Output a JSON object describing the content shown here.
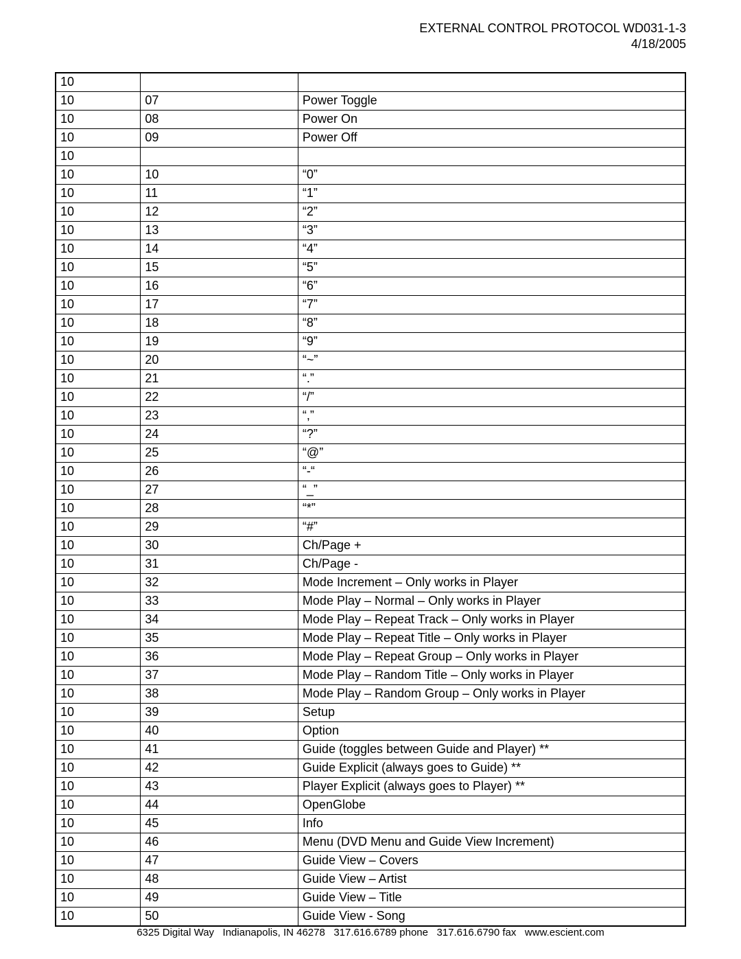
{
  "header": {
    "title": "EXTERNAL CONTROL PROTOCOL WD031-1-3",
    "date": "4/18/2005"
  },
  "table": {
    "rows": [
      {
        "c1": "10",
        "c2": "",
        "c3": ""
      },
      {
        "c1": "10",
        "c2": "07",
        "c3": "Power Toggle"
      },
      {
        "c1": "10",
        "c2": "08",
        "c3": "Power On"
      },
      {
        "c1": "10",
        "c2": "09",
        "c3": "Power Off"
      },
      {
        "c1": "10",
        "c2": "",
        "c3": ""
      },
      {
        "c1": "10",
        "c2": "10",
        "c3": "“0”"
      },
      {
        "c1": "10",
        "c2": "11",
        "c3": "“1”"
      },
      {
        "c1": "10",
        "c2": "12",
        "c3": "“2”"
      },
      {
        "c1": "10",
        "c2": "13",
        "c3": "“3”"
      },
      {
        "c1": "10",
        "c2": "14",
        "c3": "“4”"
      },
      {
        "c1": "10",
        "c2": "15",
        "c3": "“5”"
      },
      {
        "c1": "10",
        "c2": "16",
        "c3": "“6”"
      },
      {
        "c1": "10",
        "c2": "17",
        "c3": "“7”"
      },
      {
        "c1": "10",
        "c2": "18",
        "c3": "“8”"
      },
      {
        "c1": "10",
        "c2": "19",
        "c3": "“9”"
      },
      {
        "c1": "10",
        "c2": "20",
        "c3": "“~”"
      },
      {
        "c1": "10",
        "c2": "21",
        "c3": "“.”"
      },
      {
        "c1": "10",
        "c2": "22",
        "c3": "“/”"
      },
      {
        "c1": "10",
        "c2": "23",
        "c3": "“,”"
      },
      {
        "c1": "10",
        "c2": "24",
        "c3": "“?”"
      },
      {
        "c1": "10",
        "c2": "25",
        "c3": "“@”"
      },
      {
        "c1": "10",
        "c2": "26",
        "c3": "“-“"
      },
      {
        "c1": "10",
        "c2": "27",
        "c3": "“_”"
      },
      {
        "c1": "10",
        "c2": "28",
        "c3": "“*”"
      },
      {
        "c1": "10",
        "c2": "29",
        "c3": "“#”"
      },
      {
        "c1": "10",
        "c2": "30",
        "c3": "Ch/Page +"
      },
      {
        "c1": "10",
        "c2": "31",
        "c3": "Ch/Page -"
      },
      {
        "c1": "10",
        "c2": "32",
        "c3": "Mode Increment – Only works in Player"
      },
      {
        "c1": "10",
        "c2": "33",
        "c3": "Mode Play – Normal – Only works in Player"
      },
      {
        "c1": "10",
        "c2": "34",
        "c3": "Mode Play – Repeat Track – Only works in Player"
      },
      {
        "c1": "10",
        "c2": "35",
        "c3": "Mode Play – Repeat Title – Only works in Player"
      },
      {
        "c1": "10",
        "c2": "36",
        "c3": "Mode Play – Repeat Group – Only works in Player"
      },
      {
        "c1": "10",
        "c2": "37",
        "c3": "Mode Play – Random Title – Only works in Player"
      },
      {
        "c1": "10",
        "c2": "38",
        "c3": "Mode Play – Random Group – Only works in Player"
      },
      {
        "c1": "10",
        "c2": "39",
        "c3": "Setup"
      },
      {
        "c1": "10",
        "c2": "40",
        "c3": "Option"
      },
      {
        "c1": "10",
        "c2": "41",
        "c3": "Guide (toggles between Guide and Player) **"
      },
      {
        "c1": "10",
        "c2": "42",
        "c3": "Guide Explicit (always goes to Guide) **"
      },
      {
        "c1": "10",
        "c2": "43",
        "c3": "Player Explicit (always goes to Player) **"
      },
      {
        "c1": "10",
        "c2": "44",
        "c3": "OpenGlobe"
      },
      {
        "c1": "10",
        "c2": "45",
        "c3": "Info"
      },
      {
        "c1": "10",
        "c2": "46",
        "c3": "Menu (DVD Menu and Guide View Increment)"
      },
      {
        "c1": "10",
        "c2": "47",
        "c3": "Guide View – Covers"
      },
      {
        "c1": "10",
        "c2": "48",
        "c3": "Guide View – Artist"
      },
      {
        "c1": "10",
        "c2": "49",
        "c3": "Guide View – Title"
      },
      {
        "c1": "10",
        "c2": "50",
        "c3": "Guide View - Song"
      }
    ]
  },
  "footer": {
    "text": "6325 Digital Way   Indianapolis, IN 46278   317.616.6789 phone   317.616.6790 fax   www.escient.com"
  }
}
